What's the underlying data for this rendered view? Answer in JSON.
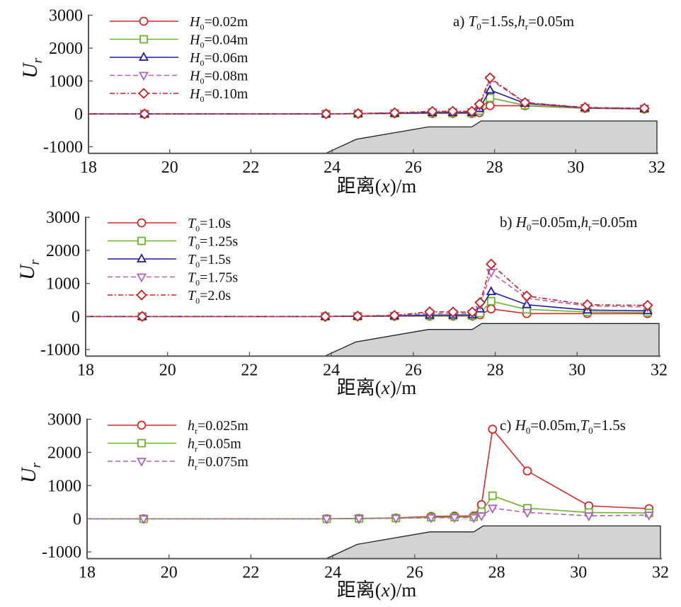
{
  "figure": {
    "xlabel_prefix": "距离",
    "xlabel_var": "x",
    "xlabel_suffix": ")/m",
    "xlabel_open": "(",
    "ylabel_main": "U",
    "ylabel_sub": "r"
  },
  "colors": {
    "red": "#d42a2a",
    "green": "#6ab42a",
    "blue": "#1a1aa0",
    "purple": "#b060c0",
    "darkred": "#c82020",
    "bathymetry_fill": "#d3d3d3",
    "bathymetry_edge": "#222222",
    "axis": "#555555"
  },
  "chart_data": [
    {
      "type": "line",
      "panel": "a",
      "title": "",
      "annotation": {
        "prefix": "a) ",
        "parts": [
          [
            "T",
            "0",
            "=1.5s,"
          ],
          [
            "h",
            "r",
            "=0.05m"
          ]
        ]
      },
      "xlabel": "距离(x)/m",
      "ylabel": "U_r",
      "xlim": [
        18,
        32
      ],
      "ylim": [
        -1200,
        3000
      ],
      "xticks": [
        18,
        20,
        22,
        24,
        26,
        28,
        30,
        32
      ],
      "yticks": [
        -1000,
        0,
        1000,
        2000,
        3000
      ],
      "grid": false,
      "legend_position": "top-left",
      "x": [
        19.38,
        23.85,
        24.64,
        25.54,
        26.47,
        26.97,
        27.44,
        27.63,
        27.89,
        28.75,
        30.23,
        31.69
      ],
      "series": [
        {
          "name": "H_0=0.02m",
          "label_main": "H",
          "label_sub": "0",
          "label_rest": "=0.02m",
          "color": "red",
          "dash": "solid",
          "marker": "circle",
          "values": [
            0,
            0,
            5,
            10,
            15,
            15,
            15,
            40,
            250,
            250,
            170,
            150
          ]
        },
        {
          "name": "H_0=0.04m",
          "label_main": "H",
          "label_sub": "0",
          "label_rest": "=0.04m",
          "color": "green",
          "dash": "solid",
          "marker": "square",
          "values": [
            0,
            0,
            5,
            15,
            25,
            25,
            25,
            100,
            488,
            260,
            175,
            155
          ]
        },
        {
          "name": "H_0=0.06m",
          "label_main": "H",
          "label_sub": "0",
          "label_rest": "=0.06m",
          "color": "blue",
          "dash": "solid",
          "marker": "triangle-up",
          "values": [
            0,
            0,
            10,
            20,
            40,
            40,
            40,
            160,
            725,
            320,
            185,
            160
          ]
        },
        {
          "name": "H_0=0.08m",
          "label_main": "H",
          "label_sub": "0",
          "label_rest": "=0.08m",
          "color": "purple",
          "dash": "dashed",
          "marker": "triangle-down",
          "values": [
            0,
            0,
            10,
            30,
            60,
            65,
            65,
            240,
            1050,
            340,
            190,
            165
          ]
        },
        {
          "name": "H_0=0.10m",
          "label_main": "H",
          "label_sub": "0",
          "label_rest": "=0.10m",
          "color": "darkred",
          "dash": "dashdot",
          "marker": "diamond",
          "values": [
            0,
            0,
            10,
            35,
            75,
            80,
            80,
            295,
            1097,
            344,
            195,
            170
          ]
        }
      ],
      "bathymetry": [
        [
          23.84,
          -1200
        ],
        [
          24.6,
          -770
        ],
        [
          26.37,
          -395
        ],
        [
          27.44,
          -395
        ],
        [
          27.67,
          -215
        ],
        [
          32,
          -215
        ],
        [
          32,
          -1200
        ]
      ]
    },
    {
      "type": "line",
      "panel": "b",
      "title": "",
      "annotation": {
        "prefix": "b) ",
        "parts": [
          [
            "H",
            "0",
            "=0.05m,"
          ],
          [
            "h",
            "r",
            "=0.05m"
          ]
        ]
      },
      "xlabel": "距离(x)/m",
      "ylabel": "U_r",
      "xlim": [
        18,
        32
      ],
      "ylim": [
        -1200,
        3000
      ],
      "xticks": [
        18,
        20,
        22,
        24,
        26,
        28,
        30,
        32
      ],
      "yticks": [
        -1000,
        0,
        1000,
        2000,
        3000
      ],
      "grid": false,
      "legend_position": "top-left",
      "x": [
        19.38,
        23.85,
        24.64,
        25.54,
        26.4,
        26.97,
        27.44,
        27.63,
        27.9,
        28.77,
        30.25,
        31.72
      ],
      "series": [
        {
          "name": "T_0=1.0s",
          "label_main": "T",
          "label_sub": "0",
          "label_rest": "=1.0s",
          "color": "red",
          "dash": "solid",
          "marker": "circle",
          "values": [
            0,
            0,
            3,
            8,
            10,
            10,
            12,
            50,
            227,
            86,
            86,
            86
          ]
        },
        {
          "name": "T_0=1.25s",
          "label_main": "T",
          "label_sub": "0",
          "label_rest": "=1.25s",
          "color": "green",
          "dash": "solid",
          "marker": "square",
          "values": [
            0,
            0,
            5,
            12,
            20,
            20,
            22,
            100,
            463,
            214,
            135,
            120
          ]
        },
        {
          "name": "T_0=1.5s",
          "label_main": "T",
          "label_sub": "0",
          "label_rest": "=1.5s",
          "color": "blue",
          "dash": "solid",
          "marker": "triangle-up",
          "values": [
            0,
            0,
            8,
            18,
            40,
            40,
            45,
            227,
            750,
            356,
            192,
            171
          ]
        },
        {
          "name": "T_0=1.75s",
          "label_main": "T",
          "label_sub": "0",
          "label_rest": "=1.75s",
          "color": "purple",
          "dash": "dashed",
          "marker": "triangle-down",
          "values": [
            0,
            0,
            10,
            25,
            90,
            90,
            95,
            350,
            1335,
            550,
            320,
            290
          ]
        },
        {
          "name": "T_0=2.0s",
          "label_main": "T",
          "label_sub": "0",
          "label_rest": "=2.0s",
          "color": "darkred",
          "dash": "dashdot",
          "marker": "diamond",
          "values": [
            0,
            0,
            12,
            30,
            141,
            135,
            135,
            420,
            1585,
            620,
            356,
            335
          ]
        }
      ],
      "bathymetry": [
        [
          23.84,
          -1200
        ],
        [
          24.6,
          -770
        ],
        [
          26.37,
          -395
        ],
        [
          27.44,
          -395
        ],
        [
          27.67,
          -215
        ],
        [
          32,
          -215
        ],
        [
          32,
          -1200
        ]
      ]
    },
    {
      "type": "line",
      "panel": "c",
      "title": "",
      "annotation": {
        "prefix": "c) ",
        "parts": [
          [
            "H",
            "0",
            "=0.05m,"
          ],
          [
            "T",
            "0",
            "=1.5s"
          ]
        ]
      },
      "xlabel": "距离(x)/m",
      "ylabel": "U_r",
      "xlim": [
        18,
        32
      ],
      "ylim": [
        -1200,
        3000
      ],
      "xticks": [
        18,
        20,
        22,
        24,
        26,
        28,
        30,
        32
      ],
      "yticks": [
        -1000,
        0,
        1000,
        2000,
        3000
      ],
      "grid": false,
      "legend_position": "top-left",
      "x": [
        19.38,
        23.85,
        24.64,
        25.54,
        26.4,
        26.97,
        27.44,
        27.63,
        27.9,
        28.75,
        30.25,
        31.72
      ],
      "series": [
        {
          "name": "h_r=0.025m",
          "label_main": "h",
          "label_sub": "r",
          "label_rest": "=0.025m",
          "color": "red",
          "dash": "solid",
          "marker": "circle",
          "values": [
            0,
            0,
            10,
            25,
            70,
            80,
            85,
            425,
            2700,
            1440,
            390,
            305
          ]
        },
        {
          "name": "h_r=0.05m",
          "label_main": "h",
          "label_sub": "r",
          "label_rest": "=0.05m",
          "color": "green",
          "dash": "solid",
          "marker": "square",
          "values": [
            0,
            0,
            8,
            20,
            45,
            50,
            55,
            210,
            695,
            320,
            190,
            175
          ]
        },
        {
          "name": "h_r=0.075m",
          "label_main": "h",
          "label_sub": "r",
          "label_rest": "=0.075m",
          "color": "purple",
          "dash": "dashed",
          "marker": "triangle-down",
          "values": [
            0,
            0,
            5,
            15,
            30,
            35,
            35,
            90,
            320,
            190,
            90,
            110
          ]
        }
      ],
      "bathymetry": [
        [
          23.84,
          -1200
        ],
        [
          24.6,
          -770
        ],
        [
          26.37,
          -395
        ],
        [
          27.44,
          -395
        ],
        [
          27.67,
          -215
        ],
        [
          32,
          -215
        ],
        [
          32,
          -1200
        ]
      ]
    }
  ]
}
